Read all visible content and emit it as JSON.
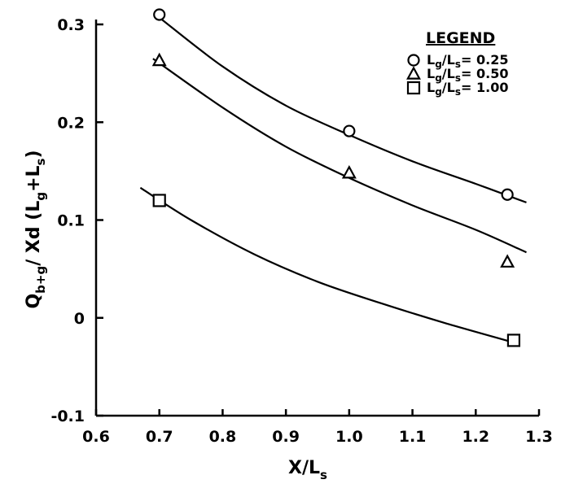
{
  "chart_data": {
    "type": "scatter",
    "xlim": [
      0.6,
      1.3
    ],
    "ylim": [
      -0.1,
      0.3
    ],
    "x_ticks": [
      0.6,
      0.7,
      0.8,
      0.9,
      1.0,
      1.1,
      1.2,
      1.3
    ],
    "y_ticks": [
      -0.1,
      0,
      0.1,
      0.2,
      0.3
    ],
    "x_tick_labels": [
      "0.6",
      "0.7",
      "0.8",
      "0.9",
      "1.0",
      "1.1",
      "1.2",
      "1.3"
    ],
    "y_tick_labels": [
      "-0.1",
      "0",
      "0.1",
      "0.2",
      "0.3"
    ],
    "xlabel": {
      "main": "X/L",
      "sub": "s"
    },
    "ylabel": {
      "part1": "Q",
      "sub1": "b+g",
      "part2": "/ Xd (L",
      "sub2": "g",
      "part3": "+L",
      "sub3": "s",
      "part4": ")"
    },
    "grid": false,
    "legend_position": "top-right",
    "legend": {
      "title": "LEGEND",
      "entries": [
        {
          "marker": "circle",
          "text_main": "L",
          "sub1": "g",
          "text_mid": "/L",
          "sub2": "s",
          "text_end": "= 0.25"
        },
        {
          "marker": "triangle",
          "text_main": "L",
          "sub1": "g",
          "text_mid": "/L",
          "sub2": "s",
          "text_end": "= 0.50"
        },
        {
          "marker": "square",
          "text_main": "L",
          "sub1": "g",
          "text_mid": "/L",
          "sub2": "s",
          "text_end": "= 1.00"
        }
      ]
    },
    "series": [
      {
        "name": "Lg/Ls= 0.25",
        "marker": "circle",
        "points": [
          {
            "x": 0.7,
            "y": 0.31
          },
          {
            "x": 1.0,
            "y": 0.191
          },
          {
            "x": 1.25,
            "y": 0.126
          }
        ],
        "curve": [
          {
            "x": 0.7,
            "y": 0.307
          },
          {
            "x": 0.8,
            "y": 0.257
          },
          {
            "x": 0.9,
            "y": 0.217
          },
          {
            "x": 1.0,
            "y": 0.187
          },
          {
            "x": 1.1,
            "y": 0.16
          },
          {
            "x": 1.2,
            "y": 0.137
          },
          {
            "x": 1.28,
            "y": 0.118
          }
        ]
      },
      {
        "name": "Lg/Ls= 0.50",
        "marker": "triangle",
        "points": [
          {
            "x": 0.7,
            "y": 0.263
          },
          {
            "x": 1.0,
            "y": 0.148
          },
          {
            "x": 1.25,
            "y": 0.057
          }
        ],
        "curve": [
          {
            "x": 0.69,
            "y": 0.265
          },
          {
            "x": 0.8,
            "y": 0.215
          },
          {
            "x": 0.9,
            "y": 0.175
          },
          {
            "x": 1.0,
            "y": 0.143
          },
          {
            "x": 1.1,
            "y": 0.115
          },
          {
            "x": 1.2,
            "y": 0.09
          },
          {
            "x": 1.28,
            "y": 0.067
          }
        ]
      },
      {
        "name": "Lg/Ls= 1.00",
        "marker": "square",
        "points": [
          {
            "x": 0.7,
            "y": 0.12
          },
          {
            "x": 1.26,
            "y": -0.023
          }
        ],
        "curve": [
          {
            "x": 0.67,
            "y": 0.133
          },
          {
            "x": 0.75,
            "y": 0.1
          },
          {
            "x": 0.85,
            "y": 0.065
          },
          {
            "x": 0.95,
            "y": 0.037
          },
          {
            "x": 1.05,
            "y": 0.015
          },
          {
            "x": 1.15,
            "y": -0.005
          },
          {
            "x": 1.27,
            "y": -0.027
          }
        ]
      }
    ]
  }
}
